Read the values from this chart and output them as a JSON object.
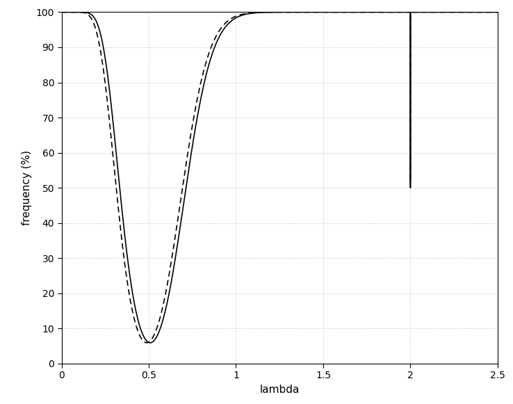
{
  "xlabel": "lambda",
  "ylabel": "frequency (%)",
  "xlim": [
    0,
    2.5
  ],
  "ylim": [
    0,
    100
  ],
  "xticks": [
    0,
    0.5,
    1.0,
    1.5,
    2.0,
    2.5
  ],
  "yticks": [
    0,
    10,
    20,
    30,
    40,
    50,
    60,
    70,
    80,
    90,
    100
  ],
  "background_color": "#ffffff",
  "line_color": "#000000",
  "grid_color": "#888888",
  "grid_linestyle": ":",
  "line1_style": "-",
  "line2_style": "--",
  "line_width": 1.2,
  "null_lambda": 0.5,
  "alpha": 0.05,
  "min_val1": 5.5,
  "min_val2": 7.0,
  "spike_bottom1": 50,
  "spike_bottom2": 52
}
